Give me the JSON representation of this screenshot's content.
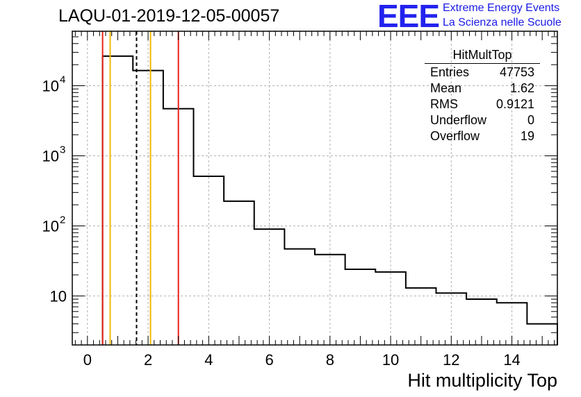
{
  "header": {
    "run_title": "LAQU-01-2019-12-05-00057",
    "logo_text": "EEE",
    "logo_line1": "Extreme Energy Events",
    "logo_line2": "La Scienza nelle Scuole"
  },
  "stats": {
    "title": "HitMultTop",
    "rows": [
      {
        "label": "Entries",
        "value": "47753"
      },
      {
        "label": "Mean",
        "value": "1.62"
      },
      {
        "label": "RMS",
        "value": "0.9121"
      },
      {
        "label": "Underflow",
        "value": "0"
      },
      {
        "label": "Overflow",
        "value": "19"
      }
    ]
  },
  "colors": {
    "histogram": "#000000",
    "red_marker": "#e8201a",
    "orange_marker": "#f2b705",
    "mean_marker": "#000000",
    "grid": "#b0b0b0"
  },
  "chart_data": {
    "type": "bar",
    "title": "LAQU-01-2019-12-05-00057",
    "xlabel": "Hit multiplicity Top",
    "ylabel": "",
    "xlim": [
      -0.5,
      15.5
    ],
    "ylim": [
      2,
      60000
    ],
    "yscale": "log",
    "grid": true,
    "x_ticks": [
      0,
      2,
      4,
      6,
      8,
      10,
      12,
      14
    ],
    "y_ticks": [
      {
        "value": 10,
        "base": "10",
        "exp": ""
      },
      {
        "value": 100,
        "base": "10",
        "exp": "2"
      },
      {
        "value": 1000,
        "base": "10",
        "exp": "3"
      },
      {
        "value": 10000,
        "base": "10",
        "exp": "4"
      }
    ],
    "bin_edges": [
      0.5,
      1.5,
      2.5,
      3.5,
      4.5,
      5.5,
      6.5,
      7.5,
      8.5,
      9.5,
      10.5,
      11.5,
      12.5,
      13.5,
      14.5,
      15.5
    ],
    "values": [
      26500,
      16500,
      4700,
      510,
      225,
      90,
      47,
      39,
      24,
      22,
      13,
      11,
      9,
      8,
      4
    ],
    "vertical_lines": [
      {
        "x": 0.5,
        "color": "red",
        "style": "solid"
      },
      {
        "x": 0.75,
        "color": "orange",
        "style": "solid"
      },
      {
        "x": 1.62,
        "color": "black",
        "style": "dashed"
      },
      {
        "x": 2.08,
        "color": "orange",
        "style": "solid"
      },
      {
        "x": 3.0,
        "color": "red",
        "style": "solid"
      }
    ]
  }
}
